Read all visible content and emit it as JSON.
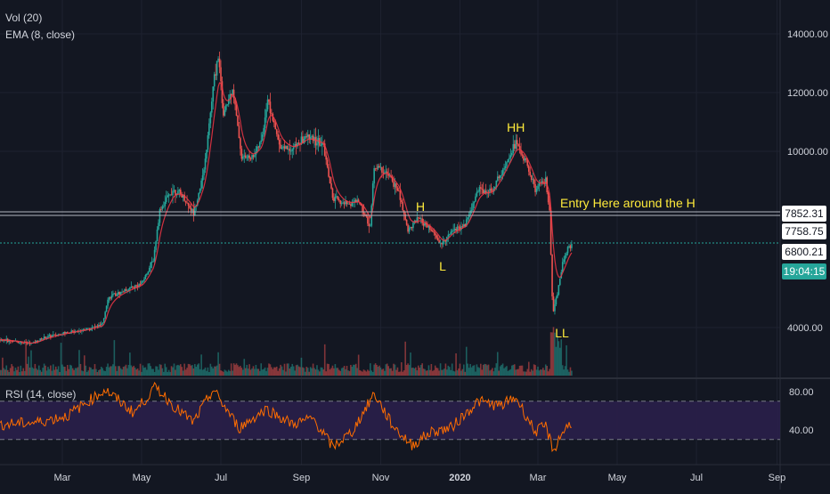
{
  "legends": {
    "volume": "Vol (20)",
    "ema": "EMA (8, close)",
    "rsi": "RSI (14, close)"
  },
  "colors": {
    "background": "#131722",
    "grid": "#1e2230",
    "up": "#26a69a",
    "down": "#ef5350",
    "ema": "#f23645",
    "rsi": "#ff6d00",
    "rsi_band": "#2a1f4a",
    "annotation": "#ffeb3b",
    "level_line": "#b2b5be",
    "last_price_line": "#26a69a"
  },
  "price_tags": {
    "upper_level": "7852.31",
    "lower_level": "7758.75",
    "last_price": "6800.21",
    "countdown": "19:04:15"
  },
  "chart_data": [
    {
      "type": "line",
      "title": "",
      "series_kind": "candlestick price with volume and EMA overlay",
      "x_ticks": [
        "Mar",
        "May",
        "Jul",
        "Sep",
        "Nov",
        "2020",
        "Mar",
        "May",
        "Jul",
        "Sep"
      ],
      "y_ticks": [
        4000,
        10000,
        12000,
        14000
      ],
      "y_range": [
        2500,
        14700
      ],
      "price_levels": [
        7852.31,
        7758.75
      ],
      "last_price": 6800.21,
      "price_series": [
        {
          "x": "2019-01-05",
          "y": 3600
        },
        {
          "x": "2019-01-20",
          "y": 3550
        },
        {
          "x": "2019-02-05",
          "y": 3450
        },
        {
          "x": "2019-02-15",
          "y": 3650
        },
        {
          "x": "2019-03-01",
          "y": 3800
        },
        {
          "x": "2019-03-20",
          "y": 3950
        },
        {
          "x": "2019-04-01",
          "y": 4100
        },
        {
          "x": "2019-04-05",
          "y": 5000
        },
        {
          "x": "2019-04-20",
          "y": 5300
        },
        {
          "x": "2019-05-01",
          "y": 5500
        },
        {
          "x": "2019-05-10",
          "y": 6300
        },
        {
          "x": "2019-05-15",
          "y": 8000
        },
        {
          "x": "2019-05-25",
          "y": 8700
        },
        {
          "x": "2019-06-01",
          "y": 8500
        },
        {
          "x": "2019-06-10",
          "y": 7900
        },
        {
          "x": "2019-06-18",
          "y": 9300
        },
        {
          "x": "2019-06-26",
          "y": 12500
        },
        {
          "x": "2019-06-29",
          "y": 13300
        },
        {
          "x": "2019-07-03",
          "y": 11200
        },
        {
          "x": "2019-07-10",
          "y": 12200
        },
        {
          "x": "2019-07-17",
          "y": 9800
        },
        {
          "x": "2019-07-25",
          "y": 9800
        },
        {
          "x": "2019-08-01",
          "y": 10300
        },
        {
          "x": "2019-08-06",
          "y": 11800
        },
        {
          "x": "2019-08-15",
          "y": 10200
        },
        {
          "x": "2019-08-25",
          "y": 10100
        },
        {
          "x": "2019-09-05",
          "y": 10500
        },
        {
          "x": "2019-09-18",
          "y": 10200
        },
        {
          "x": "2019-09-25",
          "y": 8400
        },
        {
          "x": "2019-10-05",
          "y": 8200
        },
        {
          "x": "2019-10-15",
          "y": 8300
        },
        {
          "x": "2019-10-24",
          "y": 7450
        },
        {
          "x": "2019-10-27",
          "y": 9500
        },
        {
          "x": "2019-11-05",
          "y": 9300
        },
        {
          "x": "2019-11-15",
          "y": 8600
        },
        {
          "x": "2019-11-22",
          "y": 7300
        },
        {
          "x": "2019-11-30",
          "y": 7700
        },
        {
          "x": "2019-12-10",
          "y": 7300
        },
        {
          "x": "2019-12-18",
          "y": 6800
        },
        {
          "x": "2019-12-25",
          "y": 7300
        },
        {
          "x": "2020-01-05",
          "y": 7500
        },
        {
          "x": "2020-01-15",
          "y": 8700
        },
        {
          "x": "2020-01-25",
          "y": 8600
        },
        {
          "x": "2020-02-05",
          "y": 9600
        },
        {
          "x": "2020-02-13",
          "y": 10300
        },
        {
          "x": "2020-02-20",
          "y": 9700
        },
        {
          "x": "2020-02-28",
          "y": 8700
        },
        {
          "x": "2020-03-07",
          "y": 9000
        },
        {
          "x": "2020-03-10",
          "y": 7900
        },
        {
          "x": "2020-03-12",
          "y": 5000
        },
        {
          "x": "2020-03-13",
          "y": 4500
        },
        {
          "x": "2020-03-17",
          "y": 5400
        },
        {
          "x": "2020-03-20",
          "y": 6200
        },
        {
          "x": "2020-03-24",
          "y": 6700
        },
        {
          "x": "2020-03-27",
          "y": 6800
        }
      ],
      "rsi": {
        "y_ticks": [
          40,
          80
        ],
        "band": [
          30,
          70
        ],
        "series": [
          {
            "x": "2019-01-05",
            "y": 45
          },
          {
            "x": "2019-02-10",
            "y": 48
          },
          {
            "x": "2019-03-05",
            "y": 55
          },
          {
            "x": "2019-04-03",
            "y": 82
          },
          {
            "x": "2019-04-25",
            "y": 58
          },
          {
            "x": "2019-05-12",
            "y": 85
          },
          {
            "x": "2019-05-28",
            "y": 62
          },
          {
            "x": "2019-06-10",
            "y": 48
          },
          {
            "x": "2019-06-25",
            "y": 82
          },
          {
            "x": "2019-07-15",
            "y": 42
          },
          {
            "x": "2019-08-05",
            "y": 62
          },
          {
            "x": "2019-08-25",
            "y": 46
          },
          {
            "x": "2019-09-10",
            "y": 52
          },
          {
            "x": "2019-09-25",
            "y": 22
          },
          {
            "x": "2019-10-10",
            "y": 38
          },
          {
            "x": "2019-10-27",
            "y": 78
          },
          {
            "x": "2019-11-10",
            "y": 45
          },
          {
            "x": "2019-11-25",
            "y": 24
          },
          {
            "x": "2019-12-10",
            "y": 38
          },
          {
            "x": "2019-12-25",
            "y": 42
          },
          {
            "x": "2020-01-15",
            "y": 70
          },
          {
            "x": "2020-02-01",
            "y": 65
          },
          {
            "x": "2020-02-13",
            "y": 74
          },
          {
            "x": "2020-02-28",
            "y": 38
          },
          {
            "x": "2020-03-07",
            "y": 44
          },
          {
            "x": "2020-03-13",
            "y": 18
          },
          {
            "x": "2020-03-20",
            "y": 38
          },
          {
            "x": "2020-03-27",
            "y": 48
          }
        ]
      },
      "annotations": [
        {
          "text": "HH",
          "x": "2020-02-13",
          "y": 10700
        },
        {
          "text": "H",
          "x": "2019-11-23",
          "y": 8000
        },
        {
          "text": "L",
          "x": "2019-12-18",
          "y": 6500
        },
        {
          "text": "LL",
          "x": "2020-03-17",
          "y": 4000
        },
        {
          "text": "Entry Here around the H",
          "x": "2020-03-28",
          "y": 8100
        }
      ]
    }
  ]
}
